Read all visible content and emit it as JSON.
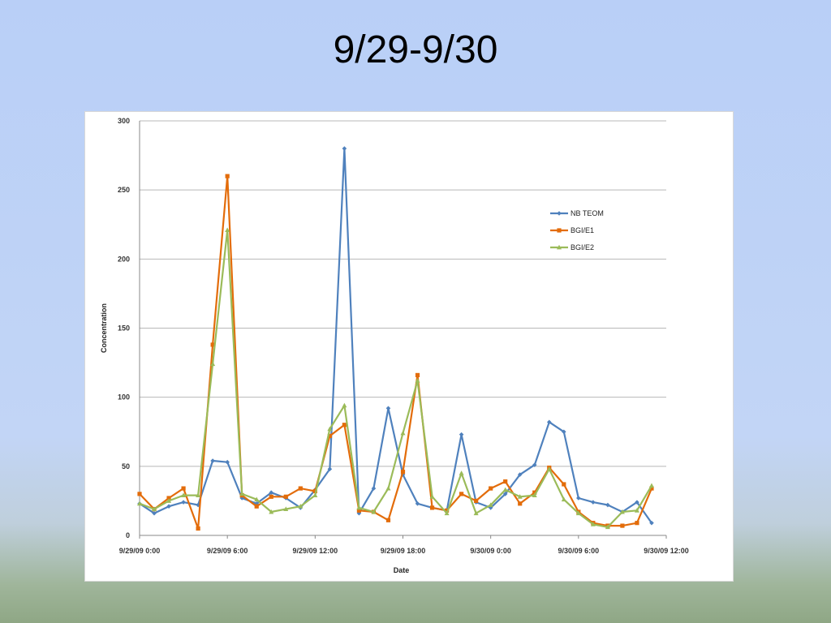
{
  "slide": {
    "title": "9/29-9/30"
  },
  "chart_data": {
    "type": "line",
    "xlabel": "Date",
    "ylabel": "Concentration",
    "ylim": [
      0,
      300
    ],
    "yticks": [
      0,
      50,
      100,
      150,
      200,
      250,
      300
    ],
    "xlim": [
      "9/29/09 0:00",
      "9/30/09 12:00"
    ],
    "xticks": [
      "9/29/09 0:00",
      "9/29/09 6:00",
      "9/29/09 12:00",
      "9/29/09 18:00",
      "9/30/09 0:00",
      "9/30/09 6:00",
      "9/30/09 12:00"
    ],
    "grid": "horizontal",
    "legend_position": "right",
    "x": [
      "9/29/09 0:00",
      "9/29/09 1:00",
      "9/29/09 2:00",
      "9/29/09 3:00",
      "9/29/09 4:00",
      "9/29/09 5:00",
      "9/29/09 6:00",
      "9/29/09 7:00",
      "9/29/09 8:00",
      "9/29/09 9:00",
      "9/29/09 10:00",
      "9/29/09 11:00",
      "9/29/09 12:00",
      "9/29/09 13:00",
      "9/29/09 14:00",
      "9/29/09 15:00",
      "9/29/09 16:00",
      "9/29/09 17:00",
      "9/29/09 18:00",
      "9/29/09 19:00",
      "9/29/09 20:00",
      "9/29/09 21:00",
      "9/29/09 22:00",
      "9/29/09 23:00",
      "9/30/09 0:00",
      "9/30/09 1:00",
      "9/30/09 2:00",
      "9/30/09 3:00",
      "9/30/09 4:00",
      "9/30/09 5:00",
      "9/30/09 6:00",
      "9/30/09 7:00",
      "9/30/09 8:00",
      "9/30/09 9:00",
      "9/30/09 10:00",
      "9/30/09 11:00"
    ],
    "series": [
      {
        "name": "NB TEOM",
        "color": "#4f81bd",
        "marker": "diamond",
        "values": [
          23,
          16,
          21,
          24,
          22,
          54,
          53,
          27,
          23,
          31,
          27,
          20,
          33,
          48,
          280,
          16,
          34,
          92,
          44,
          23,
          20,
          18,
          73,
          24,
          20,
          30,
          44,
          51,
          82,
          75,
          27,
          24,
          22,
          17,
          24,
          9
        ]
      },
      {
        "name": "BGI/E1",
        "color": "#e36c0a",
        "marker": "square",
        "values": [
          30,
          19,
          27,
          34,
          5,
          138,
          260,
          29,
          21,
          28,
          28,
          34,
          32,
          72,
          80,
          18,
          17,
          11,
          46,
          116,
          20,
          18,
          30,
          25,
          34,
          39,
          23,
          31,
          49,
          37,
          17,
          9,
          7,
          7,
          9,
          34
        ]
      },
      {
        "name": "BGI/E2",
        "color": "#9bbb59",
        "marker": "triangle",
        "values": [
          23,
          19,
          25,
          29,
          29,
          124,
          221,
          30,
          26,
          17,
          19,
          21,
          29,
          77,
          94,
          20,
          17,
          34,
          74,
          112,
          28,
          16,
          45,
          16,
          22,
          33,
          28,
          29,
          48,
          26,
          16,
          8,
          6,
          17,
          18,
          36
        ]
      }
    ]
  }
}
